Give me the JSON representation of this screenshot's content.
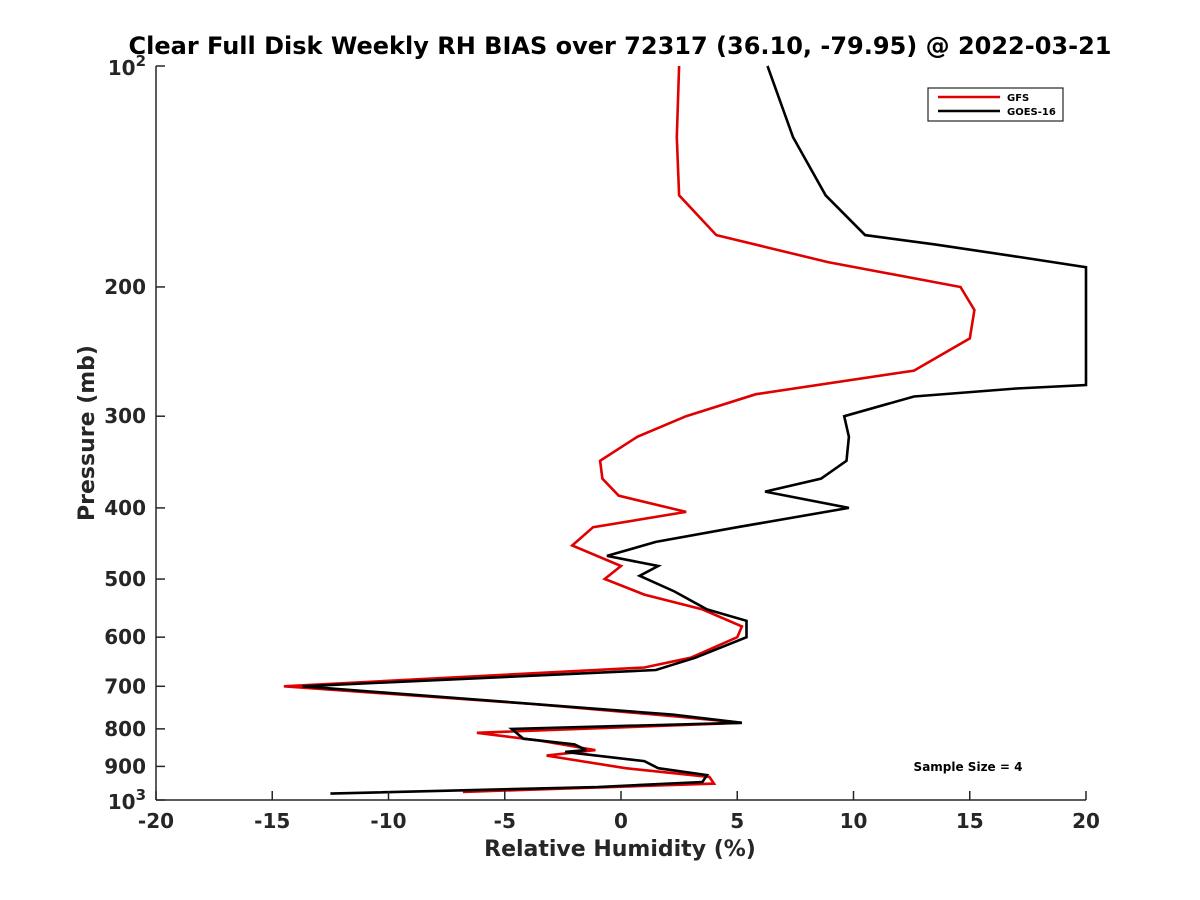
{
  "chart_data": {
    "type": "line",
    "title": "Clear Full Disk Weekly RH BIAS over 72317 (36.10, -79.95) @ 2022-03-21",
    "xlabel": "Relative Humidity (%)",
    "ylabel": "Pressure (mb)",
    "xlim": [
      -20,
      20
    ],
    "ylim": [
      100,
      1000
    ],
    "y_scale": "log",
    "y_reversed": true,
    "grid": false,
    "legend_position": "top-right",
    "x_ticks": [
      "-20",
      "-15",
      "-10",
      "-5",
      "0",
      "5",
      "10",
      "15",
      "20"
    ],
    "y_ticks": [
      {
        "value": 200,
        "label": "200"
      },
      {
        "value": 300,
        "label": "300"
      },
      {
        "value": 400,
        "label": "400"
      },
      {
        "value": 500,
        "label": "500"
      },
      {
        "value": 600,
        "label": "600"
      },
      {
        "value": 700,
        "label": "700"
      },
      {
        "value": 800,
        "label": "800"
      },
      {
        "value": 900,
        "label": "900"
      }
    ],
    "y_tick_top": {
      "base": "10",
      "exp": "2"
    },
    "y_tick_bottom": {
      "base": "10",
      "exp": "3"
    },
    "annotation": "Sample Size = 4",
    "series": [
      {
        "name": "GFS",
        "color": "#e00000",
        "points": [
          {
            "x": 2.5,
            "y": 100
          },
          {
            "x": 2.4,
            "y": 125
          },
          {
            "x": 2.5,
            "y": 150
          },
          {
            "x": 4.1,
            "y": 170
          },
          {
            "x": 8.9,
            "y": 185
          },
          {
            "x": 14.6,
            "y": 200
          },
          {
            "x": 15.2,
            "y": 215
          },
          {
            "x": 15.0,
            "y": 235
          },
          {
            "x": 12.6,
            "y": 260
          },
          {
            "x": 5.8,
            "y": 280
          },
          {
            "x": 2.8,
            "y": 300
          },
          {
            "x": 0.7,
            "y": 320
          },
          {
            "x": -0.9,
            "y": 345
          },
          {
            "x": -0.8,
            "y": 365
          },
          {
            "x": -0.1,
            "y": 385
          },
          {
            "x": 2.8,
            "y": 405
          },
          {
            "x": -1.2,
            "y": 425
          },
          {
            "x": -2.1,
            "y": 450
          },
          {
            "x": 0.0,
            "y": 480
          },
          {
            "x": -0.7,
            "y": 500
          },
          {
            "x": 1.0,
            "y": 525
          },
          {
            "x": 3.5,
            "y": 550
          },
          {
            "x": 5.2,
            "y": 580
          },
          {
            "x": 5.0,
            "y": 600
          },
          {
            "x": 3.0,
            "y": 640
          },
          {
            "x": 1.0,
            "y": 660
          },
          {
            "x": -14.5,
            "y": 700
          },
          {
            "x": -3.8,
            "y": 740
          },
          {
            "x": 2.5,
            "y": 770
          },
          {
            "x": 5.2,
            "y": 785
          },
          {
            "x": -6.2,
            "y": 810
          },
          {
            "x": -3.5,
            "y": 830
          },
          {
            "x": -1.1,
            "y": 855
          },
          {
            "x": -3.2,
            "y": 870
          },
          {
            "x": 0.2,
            "y": 905
          },
          {
            "x": 3.8,
            "y": 930
          },
          {
            "x": 4.0,
            "y": 950
          },
          {
            "x": -6.8,
            "y": 975
          }
        ]
      },
      {
        "name": "GOES-16",
        "color": "#000000",
        "points": [
          {
            "x": 6.3,
            "y": 100
          },
          {
            "x": 7.4,
            "y": 125
          },
          {
            "x": 8.8,
            "y": 150
          },
          {
            "x": 10.5,
            "y": 170
          },
          {
            "x": 13.5,
            "y": 175
          },
          {
            "x": 17.1,
            "y": 182
          },
          {
            "x": 20.0,
            "y": 188
          },
          {
            "x": 20.0,
            "y": 272
          },
          {
            "x": 17.0,
            "y": 275
          },
          {
            "x": 12.6,
            "y": 282
          },
          {
            "x": 9.6,
            "y": 300
          },
          {
            "x": 9.8,
            "y": 320
          },
          {
            "x": 9.7,
            "y": 345
          },
          {
            "x": 8.6,
            "y": 365
          },
          {
            "x": 6.2,
            "y": 380
          },
          {
            "x": 9.8,
            "y": 400
          },
          {
            "x": 5.0,
            "y": 425
          },
          {
            "x": 1.5,
            "y": 445
          },
          {
            "x": -0.6,
            "y": 465
          },
          {
            "x": 1.6,
            "y": 480
          },
          {
            "x": 0.8,
            "y": 495
          },
          {
            "x": 2.3,
            "y": 520
          },
          {
            "x": 3.7,
            "y": 550
          },
          {
            "x": 5.4,
            "y": 570
          },
          {
            "x": 5.4,
            "y": 600
          },
          {
            "x": 3.2,
            "y": 640
          },
          {
            "x": 1.5,
            "y": 665
          },
          {
            "x": -13.7,
            "y": 700
          },
          {
            "x": 2.2,
            "y": 765
          },
          {
            "x": 5.2,
            "y": 785
          },
          {
            "x": -4.7,
            "y": 800
          },
          {
            "x": -4.2,
            "y": 825
          },
          {
            "x": -2.0,
            "y": 840
          },
          {
            "x": -1.5,
            "y": 855
          },
          {
            "x": -2.4,
            "y": 860
          },
          {
            "x": 1.0,
            "y": 885
          },
          {
            "x": 1.6,
            "y": 905
          },
          {
            "x": 3.7,
            "y": 925
          },
          {
            "x": 3.5,
            "y": 945
          },
          {
            "x": -1.0,
            "y": 960
          },
          {
            "x": -12.5,
            "y": 980
          }
        ]
      }
    ]
  }
}
